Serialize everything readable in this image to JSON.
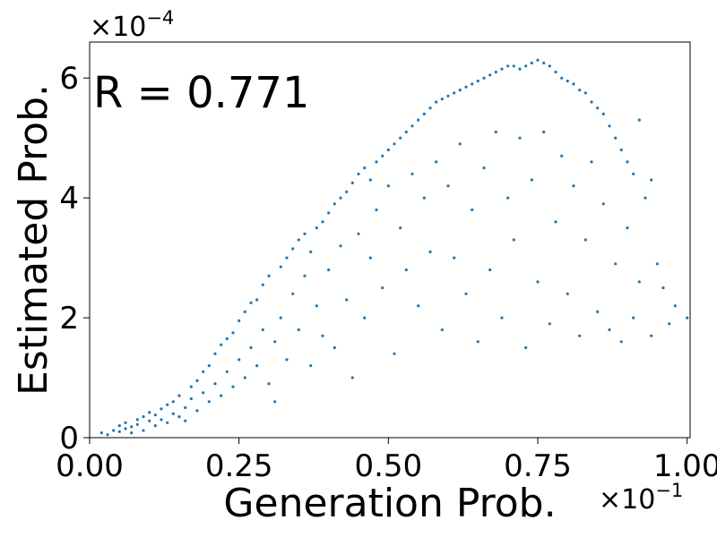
{
  "chart_data": {
    "type": "scatter",
    "title": "",
    "xlabel": "Generation Prob.",
    "ylabel": "Estimated Prob.",
    "x_multiplier_base": "×10",
    "x_multiplier_exp": "−1",
    "y_multiplier_base": "×10",
    "y_multiplier_exp": "−4",
    "annotation": "R = 0.771",
    "xlim": [
      0.0,
      0.1005
    ],
    "ylim": [
      0.0,
      0.00066
    ],
    "xticks": [
      0.0,
      0.025,
      0.05,
      0.075,
      0.1
    ],
    "xtick_labels": [
      "0.00",
      "0.25",
      "0.50",
      "0.75",
      "1.00"
    ],
    "yticks": [
      0.0,
      0.0002,
      0.0004,
      0.0006
    ],
    "ytick_labels": [
      "0",
      "2",
      "4",
      "6"
    ],
    "grid": false,
    "marker_color": "#1f77b4",
    "series": [
      {
        "points": [
          [
            0.002,
            8e-06
          ],
          [
            0.003,
            5e-06
          ],
          [
            0.004,
            1.2e-05
          ],
          [
            0.005,
            2e-05
          ],
          [
            0.005,
            1e-05
          ],
          [
            0.006,
            1.5e-05
          ],
          [
            0.006,
            2.5e-05
          ],
          [
            0.007,
            1.8e-05
          ],
          [
            0.007,
            8e-06
          ],
          [
            0.008,
            2.2e-05
          ],
          [
            0.008,
            3e-05
          ],
          [
            0.009,
            1.2e-05
          ],
          [
            0.009,
            3.5e-05
          ],
          [
            0.01,
            2.8e-05
          ],
          [
            0.01,
            4.2e-05
          ],
          [
            0.011,
            2e-05
          ],
          [
            0.011,
            3.8e-05
          ],
          [
            0.012,
            4.8e-05
          ],
          [
            0.012,
            3e-05
          ],
          [
            0.013,
            5.5e-05
          ],
          [
            0.013,
            2.5e-05
          ],
          [
            0.014,
            4e-05
          ],
          [
            0.014,
            6e-05
          ],
          [
            0.015,
            3.5e-05
          ],
          [
            0.015,
            7e-05
          ],
          [
            0.016,
            5e-05
          ],
          [
            0.016,
            2.8e-05
          ],
          [
            0.017,
            6.5e-05
          ],
          [
            0.017,
            8.5e-05
          ],
          [
            0.018,
            4.5e-05
          ],
          [
            0.018,
            9.5e-05
          ],
          [
            0.019,
            7.5e-05
          ],
          [
            0.019,
            0.00011
          ],
          [
            0.02,
            6e-05
          ],
          [
            0.02,
            0.00012
          ],
          [
            0.021,
            9e-05
          ],
          [
            0.021,
            0.00014
          ],
          [
            0.022,
            7e-05
          ],
          [
            0.022,
            0.000155
          ],
          [
            0.023,
            0.00011
          ],
          [
            0.023,
            0.000165
          ],
          [
            0.024,
            8.5e-05
          ],
          [
            0.024,
            0.000175
          ],
          [
            0.025,
            0.00013
          ],
          [
            0.025,
            0.000195
          ],
          [
            0.026,
            0.0001
          ],
          [
            0.026,
            0.00021
          ],
          [
            0.027,
            0.00015
          ],
          [
            0.027,
            0.000225
          ],
          [
            0.028,
            0.00012
          ],
          [
            0.028,
            0.00023
          ],
          [
            0.029,
            0.00018
          ],
          [
            0.029,
            0.000255
          ],
          [
            0.03,
            9e-05
          ],
          [
            0.03,
            0.00027
          ],
          [
            0.031,
            0.00016
          ],
          [
            0.031,
            6e-05
          ],
          [
            0.032,
            0.000285
          ],
          [
            0.032,
            0.0002
          ],
          [
            0.033,
            0.0003
          ],
          [
            0.033,
            0.00013
          ],
          [
            0.034,
            0.000315
          ],
          [
            0.034,
            0.00024
          ],
          [
            0.035,
            0.00033
          ],
          [
            0.035,
            0.00018
          ],
          [
            0.036,
            0.00034
          ],
          [
            0.036,
            0.00027
          ],
          [
            0.037,
            0.00031
          ],
          [
            0.037,
            0.00012
          ],
          [
            0.038,
            0.00035
          ],
          [
            0.038,
            0.00022
          ],
          [
            0.039,
            0.00036
          ],
          [
            0.039,
            0.00017
          ],
          [
            0.04,
            0.000375
          ],
          [
            0.04,
            0.00028
          ],
          [
            0.041,
            0.00039
          ],
          [
            0.041,
            0.00015
          ],
          [
            0.042,
            0.0004
          ],
          [
            0.042,
            0.00032
          ],
          [
            0.043,
            0.00041
          ],
          [
            0.043,
            0.00023
          ],
          [
            0.044,
            0.000425
          ],
          [
            0.044,
            0.0001
          ],
          [
            0.045,
            0.00044
          ],
          [
            0.045,
            0.00034
          ],
          [
            0.046,
            0.00045
          ],
          [
            0.046,
            0.0002
          ],
          [
            0.047,
            0.00043
          ],
          [
            0.047,
            0.0003
          ],
          [
            0.048,
            0.00046
          ],
          [
            0.048,
            0.00038
          ],
          [
            0.049,
            0.00047
          ],
          [
            0.049,
            0.00025
          ],
          [
            0.05,
            0.00048
          ],
          [
            0.05,
            0.00042
          ],
          [
            0.051,
            0.00049
          ],
          [
            0.051,
            0.00014
          ],
          [
            0.052,
            0.0005
          ],
          [
            0.052,
            0.00035
          ],
          [
            0.053,
            0.00051
          ],
          [
            0.053,
            0.00028
          ],
          [
            0.054,
            0.00052
          ],
          [
            0.054,
            0.00044
          ],
          [
            0.055,
            0.00053
          ],
          [
            0.055,
            0.00022
          ],
          [
            0.056,
            0.00054
          ],
          [
            0.056,
            0.0004
          ],
          [
            0.057,
            0.00055
          ],
          [
            0.057,
            0.00031
          ],
          [
            0.058,
            0.00056
          ],
          [
            0.058,
            0.00046
          ],
          [
            0.059,
            0.000565
          ],
          [
            0.059,
            0.00018
          ],
          [
            0.06,
            0.00057
          ],
          [
            0.06,
            0.00042
          ],
          [
            0.061,
            0.000575
          ],
          [
            0.061,
            0.0003
          ],
          [
            0.062,
            0.00058
          ],
          [
            0.062,
            0.00049
          ],
          [
            0.063,
            0.000585
          ],
          [
            0.063,
            0.00024
          ],
          [
            0.064,
            0.00059
          ],
          [
            0.064,
            0.00038
          ],
          [
            0.065,
            0.000595
          ],
          [
            0.065,
            0.00016
          ],
          [
            0.066,
            0.0006
          ],
          [
            0.066,
            0.00045
          ],
          [
            0.067,
            0.000605
          ],
          [
            0.067,
            0.00028
          ],
          [
            0.068,
            0.00061
          ],
          [
            0.068,
            0.00051
          ],
          [
            0.069,
            0.000615
          ],
          [
            0.069,
            0.0002
          ],
          [
            0.07,
            0.00062
          ],
          [
            0.07,
            0.0004
          ],
          [
            0.071,
            0.00062
          ],
          [
            0.071,
            0.00033
          ],
          [
            0.072,
            0.000615
          ],
          [
            0.072,
            0.0005
          ],
          [
            0.073,
            0.00062
          ],
          [
            0.073,
            0.00015
          ],
          [
            0.074,
            0.000625
          ],
          [
            0.074,
            0.00043
          ],
          [
            0.075,
            0.00063
          ],
          [
            0.075,
            0.00026
          ],
          [
            0.076,
            0.000625
          ],
          [
            0.076,
            0.00051
          ],
          [
            0.077,
            0.00062
          ],
          [
            0.077,
            0.00019
          ],
          [
            0.078,
            0.00061
          ],
          [
            0.078,
            0.00036
          ],
          [
            0.079,
            0.0006
          ],
          [
            0.079,
            0.00047
          ],
          [
            0.08,
            0.000595
          ],
          [
            0.08,
            0.00024
          ],
          [
            0.081,
            0.00059
          ],
          [
            0.081,
            0.00042
          ],
          [
            0.082,
            0.00058
          ],
          [
            0.082,
            0.00017
          ],
          [
            0.083,
            0.000575
          ],
          [
            0.083,
            0.00033
          ],
          [
            0.084,
            0.00056
          ],
          [
            0.084,
            0.00046
          ],
          [
            0.085,
            0.00055
          ],
          [
            0.085,
            0.00021
          ],
          [
            0.086,
            0.00054
          ],
          [
            0.086,
            0.00039
          ],
          [
            0.087,
            0.00052
          ],
          [
            0.087,
            0.00018
          ],
          [
            0.088,
            0.0005
          ],
          [
            0.088,
            0.00029
          ],
          [
            0.089,
            0.00048
          ],
          [
            0.089,
            0.00016
          ],
          [
            0.09,
            0.00046
          ],
          [
            0.09,
            0.00035
          ],
          [
            0.091,
            0.00044
          ],
          [
            0.091,
            0.0002
          ],
          [
            0.092,
            0.00053
          ],
          [
            0.092,
            0.00026
          ],
          [
            0.093,
            0.0004
          ],
          [
            0.094,
            0.00043
          ],
          [
            0.094,
            0.00017
          ],
          [
            0.095,
            0.00029
          ],
          [
            0.096,
            0.00025
          ],
          [
            0.097,
            0.00019
          ],
          [
            0.098,
            0.00022
          ],
          [
            0.1,
            0.0002
          ]
        ]
      }
    ]
  }
}
